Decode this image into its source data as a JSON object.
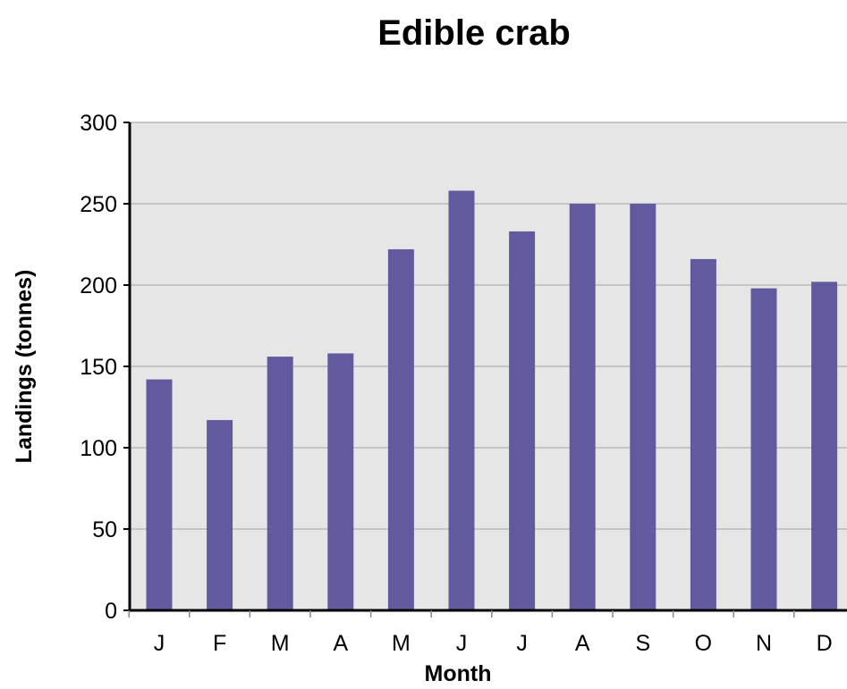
{
  "chart_data": {
    "type": "bar",
    "title": "Edible crab",
    "xlabel": "Month",
    "ylabel": "Landings (tonnes)",
    "categories": [
      "J",
      "F",
      "M",
      "A",
      "M",
      "J",
      "J",
      "A",
      "S",
      "O",
      "N",
      "D"
    ],
    "values": [
      142,
      117,
      156,
      158,
      222,
      258,
      233,
      250,
      250,
      216,
      198,
      202
    ],
    "ylim": [
      0,
      300
    ],
    "yticks": [
      0,
      50,
      100,
      150,
      200,
      250,
      300
    ],
    "grid": true,
    "legend": "none"
  },
  "colors": {
    "bar": "#625a9f",
    "plot_background": "#e6e6e6",
    "gridline": "#b9b9b9",
    "axis": "#000000"
  }
}
